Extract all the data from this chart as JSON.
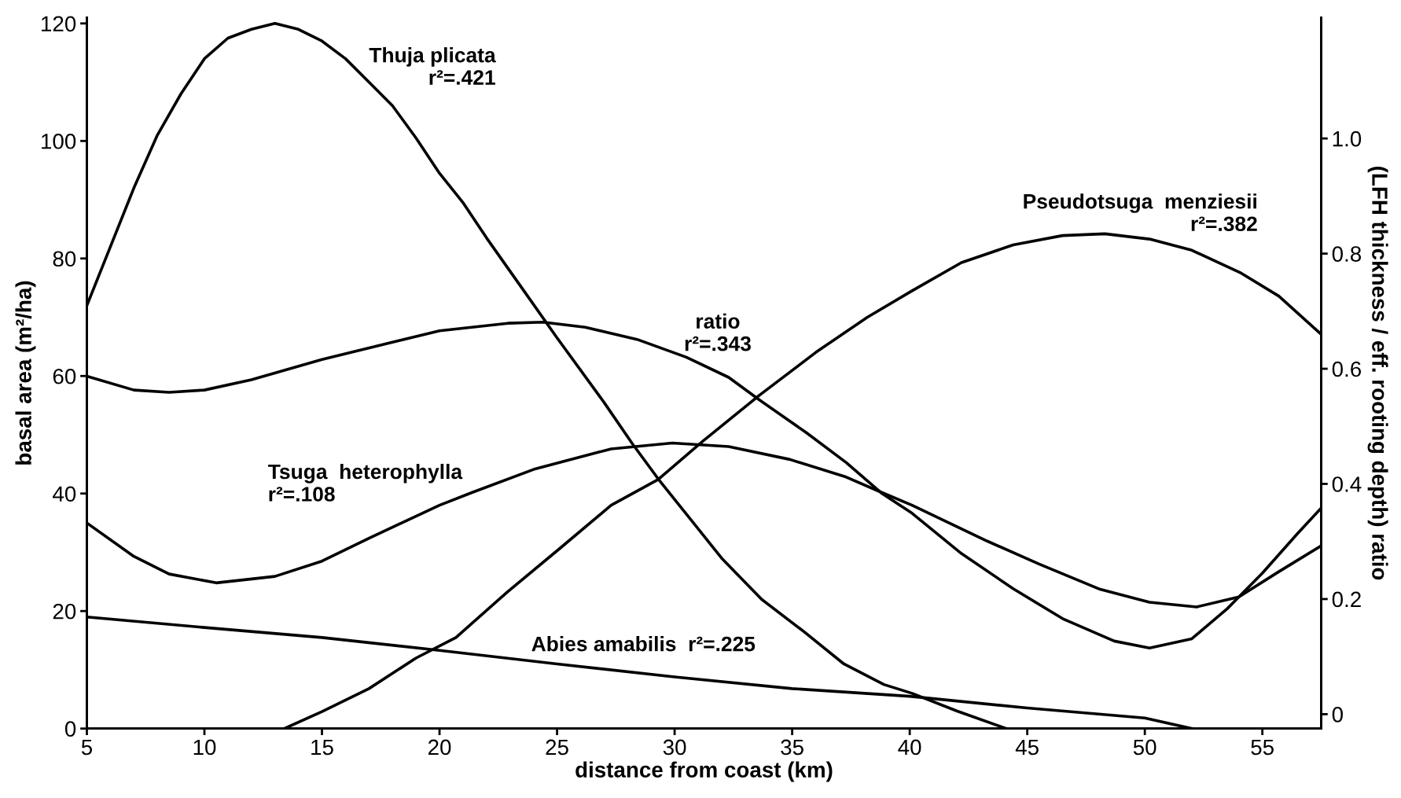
{
  "chart_data": {
    "type": "line",
    "xlabel": "distance from coast (km)",
    "ylabel": "basal area (m²/ha)",
    "y2label": "(LFH thickness / eff. rooting depth) ratio",
    "xlim": [
      5,
      57.5
    ],
    "xticks": [
      5,
      10,
      15,
      20,
      25,
      30,
      35,
      40,
      45,
      50,
      55
    ],
    "ylim": [
      0,
      121
    ],
    "yticks": [
      0,
      20,
      40,
      60,
      80,
      100,
      120
    ],
    "y2lim": [
      -0.025,
      1.21
    ],
    "y2ticks": [
      0,
      0.2,
      0.4,
      0.6,
      0.8,
      {
        "value": 1.0,
        "label": "1.0"
      }
    ],
    "grid": false,
    "marker": "none",
    "line_style": "solid",
    "series": [
      {
        "name": "Thuja plicata\nr²=.421",
        "color": "#000000",
        "x": [
          5,
          6,
          7,
          8,
          9,
          10,
          11,
          12,
          13,
          14,
          15,
          16,
          17,
          18,
          19,
          20,
          21,
          22,
          23.5,
          25,
          27,
          28.2,
          29.3,
          30.5,
          32,
          33.7,
          35.5,
          37.2,
          38.9,
          40.1,
          42,
          44.1
        ],
        "values": [
          72,
          82,
          92,
          101,
          108,
          114,
          117.5,
          119,
          120,
          119,
          117,
          114,
          110,
          106,
          100.5,
          94.5,
          89.5,
          83.5,
          75,
          66.5,
          55.5,
          48.5,
          42.5,
          36.5,
          29,
          22,
          16.5,
          11,
          7.5,
          6,
          3,
          0
        ]
      },
      {
        "name": "ratio\nr²=.343",
        "color": "#000000",
        "axis": "y2",
        "x": [
          5,
          7,
          8.5,
          10,
          12,
          15,
          18,
          20,
          22.9,
          24.4,
          26.2,
          28.4,
          30.5,
          32.3,
          33.6,
          35.6,
          37.3,
          38.8,
          40.1,
          42.2,
          44.4,
          46.5,
          48.7,
          50.2,
          52,
          53.5,
          55,
          56.5,
          57.5
        ],
        "values": [
          0.587,
          0.563,
          0.559,
          0.563,
          0.581,
          0.616,
          0.646,
          0.666,
          0.679,
          0.681,
          0.672,
          0.651,
          0.62,
          0.585,
          0.546,
          0.489,
          0.437,
          0.384,
          0.349,
          0.279,
          0.218,
          0.166,
          0.127,
          0.115,
          0.131,
          0.183,
          0.245,
          0.314,
          0.358
        ]
      },
      {
        "name": "Tsuga  heterophylla\nr²=.108",
        "color": "#000000",
        "x": [
          5,
          7,
          8.5,
          10.5,
          13,
          15,
          17,
          20,
          21.4,
          24,
          27.3,
          29.9,
          32.3,
          34.9,
          37.3,
          38.8,
          40.1,
          43.3,
          45.5,
          48.1,
          50.2,
          52.2,
          54,
          55.7,
          57.5
        ],
        "values": [
          35,
          29.3,
          26.3,
          24.8,
          25.9,
          28.5,
          32.4,
          38,
          40.2,
          44.1,
          47.6,
          48.6,
          48,
          45.8,
          42.8,
          40.2,
          38,
          31.9,
          28,
          23.7,
          21.5,
          20.7,
          22.4,
          26.7,
          31.1
        ]
      },
      {
        "name": "Pseudotsuga  menziesii\nr²=.382",
        "color": "#000000",
        "x": [
          13.4,
          15,
          17,
          19,
          20.7,
          22.9,
          25.1,
          27.3,
          29.3,
          31.2,
          33.6,
          36,
          38.2,
          40.1,
          42.2,
          44.4,
          46.5,
          48.3,
          50.2,
          52,
          54.1,
          55.7,
          57.5
        ],
        "values": [
          0,
          2.9,
          6.8,
          12,
          15.5,
          23.3,
          30.6,
          38,
          42.4,
          48.9,
          56.7,
          64,
          70,
          74.5,
          79.3,
          82.3,
          83.9,
          84.2,
          83.3,
          81.4,
          77.5,
          73.6,
          67.1
        ]
      },
      {
        "name": "Abies amabilis  r²=.225",
        "color": "#000000",
        "x": [
          5,
          10,
          15,
          20,
          25,
          30,
          35,
          40,
          45,
          50,
          52
        ],
        "values": [
          19,
          17.2,
          15.5,
          13.3,
          11,
          8.8,
          6.8,
          5.5,
          3.5,
          1.8,
          0
        ]
      }
    ]
  }
}
